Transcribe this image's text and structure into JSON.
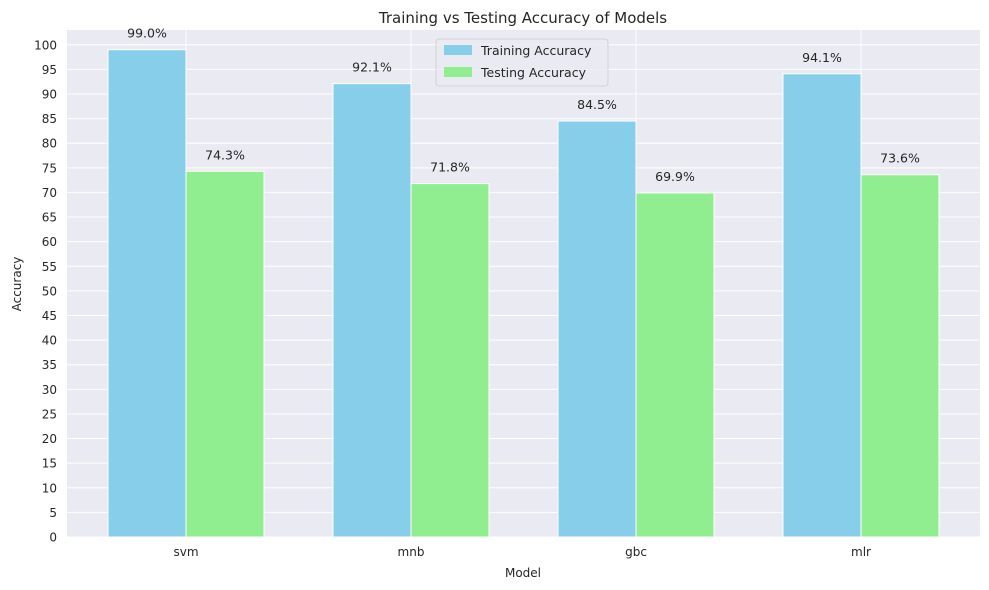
{
  "chart_data": {
    "type": "bar",
    "title": "Training vs Testing Accuracy of Models",
    "xlabel": "Model",
    "ylabel": "Accuracy",
    "categories": [
      "svm",
      "mnb",
      "gbc",
      "mlr"
    ],
    "series": [
      {
        "name": "Training Accuracy",
        "values": [
          99.0,
          92.1,
          84.5,
          94.1
        ],
        "labels": [
          "99.0%",
          "92.1%",
          "84.5%",
          "94.1%"
        ],
        "color": "#87CEEB"
      },
      {
        "name": "Testing Accuracy",
        "values": [
          74.3,
          71.8,
          69.9,
          73.6
        ],
        "labels": [
          "74.3%",
          "71.8%",
          "69.9%",
          "73.6%"
        ],
        "color": "#90EE90"
      }
    ],
    "ylim": [
      0,
      103
    ],
    "yticks": [
      0,
      5,
      10,
      15,
      20,
      25,
      30,
      35,
      40,
      45,
      50,
      55,
      60,
      65,
      70,
      75,
      80,
      85,
      90,
      95,
      100
    ],
    "grid": true,
    "legend_position": "top-center",
    "background": "#EAEAF2"
  }
}
